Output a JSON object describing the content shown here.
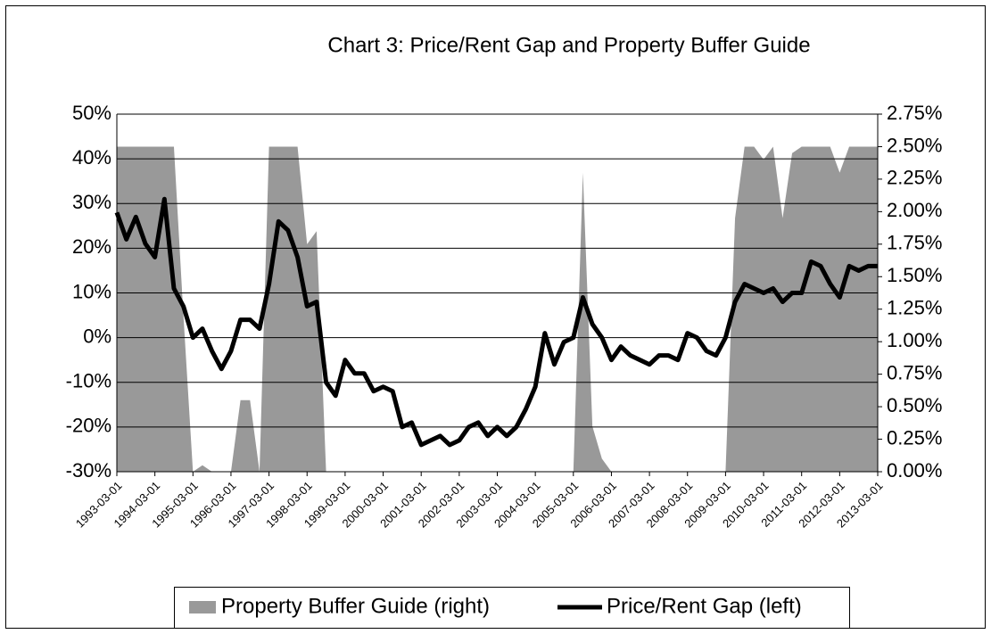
{
  "chart_data": {
    "type": "line",
    "title": "Chart 3: Price/Rent Gap and Property Buffer Guide",
    "categories": [
      "1993-03-01",
      null,
      null,
      null,
      "1994-03-01",
      null,
      null,
      null,
      "1995-03-01",
      null,
      null,
      null,
      "1996-03-01",
      null,
      null,
      null,
      "1997-03-01",
      null,
      null,
      null,
      "1998-03-01",
      null,
      null,
      null,
      "1999-03-01",
      null,
      null,
      null,
      "2000-03-01",
      null,
      null,
      null,
      "2001-03-01",
      null,
      null,
      null,
      "2002-03-01",
      null,
      null,
      null,
      "2003-03-01",
      null,
      null,
      null,
      "2004-03-01",
      null,
      null,
      null,
      "2005-03-01",
      null,
      null,
      null,
      "2006-03-01",
      null,
      null,
      null,
      "2007-03-01",
      null,
      null,
      null,
      "2008-03-01",
      null,
      null,
      null,
      "2009-03-01",
      null,
      null,
      null,
      "2010-03-01",
      null,
      null,
      null,
      "2011-03-01",
      null,
      null,
      null,
      "2012-03-01",
      null,
      null,
      null,
      "2013-03-01"
    ],
    "series": [
      {
        "name": "Property Buffer Guide (right)",
        "type": "area",
        "axis": "y2",
        "color": "#999999",
        "values": [
          2.5,
          2.5,
          2.5,
          2.5,
          2.5,
          2.5,
          2.5,
          1.2,
          0,
          0.05,
          0,
          0,
          0,
          0.55,
          0.55,
          0,
          2.5,
          2.5,
          2.5,
          2.5,
          1.75,
          1.85,
          0,
          0,
          0,
          0,
          0,
          0,
          0,
          0,
          0,
          0,
          0,
          0,
          0,
          0,
          0,
          0,
          0,
          0,
          0,
          0,
          0,
          0,
          0,
          0,
          0,
          0,
          0,
          2.3,
          0.35,
          0.1,
          0,
          0,
          0,
          0,
          0,
          0,
          0,
          0,
          0,
          0,
          0,
          0,
          0,
          1.95,
          2.5,
          2.5,
          2.4,
          2.5,
          1.95,
          2.45,
          2.5,
          2.5,
          2.5,
          2.5,
          2.3,
          2.5,
          2.5,
          2.5,
          2.5
        ]
      },
      {
        "name": "Price/Rent Gap (left)",
        "type": "line",
        "color": "#000000",
        "values": [
          28,
          22,
          27,
          21,
          18,
          31,
          11,
          7,
          0,
          2,
          -3,
          -7,
          -3,
          4,
          4,
          2,
          12,
          26,
          24,
          18,
          7,
          8,
          -10,
          -13,
          -5,
          -8,
          -8,
          -12,
          -11,
          -12,
          -20,
          -19,
          -24,
          -23,
          -22,
          -24,
          -23,
          -20,
          -19,
          -22,
          -20,
          -22,
          -20,
          -16,
          -11,
          1,
          -6,
          -1,
          0,
          9,
          3,
          0,
          -5,
          -2,
          -4,
          -5,
          -6,
          -4,
          -4,
          -5,
          1,
          0,
          -3,
          -4,
          0,
          8,
          12,
          11,
          10,
          11,
          8,
          10,
          10,
          17,
          16,
          12,
          9,
          16,
          15,
          16,
          16
        ]
      }
    ],
    "ylim": [
      -30,
      50
    ],
    "yticks": [
      {
        "value": -30,
        "label": "-30%"
      },
      {
        "value": -20,
        "label": "-20%"
      },
      {
        "value": -10,
        "label": "-10%"
      },
      {
        "value": 0,
        "label": "0%"
      },
      {
        "value": 10,
        "label": "10%"
      },
      {
        "value": 20,
        "label": "20%"
      },
      {
        "value": 30,
        "label": "30%"
      },
      {
        "value": 40,
        "label": "40%"
      },
      {
        "value": 50,
        "label": "50%"
      }
    ],
    "y2lim": [
      0,
      2.75
    ],
    "y2ticks": [
      {
        "value": 0,
        "label": "0.00%"
      },
      {
        "value": 0.25,
        "label": "0.25%"
      },
      {
        "value": 0.5,
        "label": "0.50%"
      },
      {
        "value": 0.75,
        "label": "0.75%"
      },
      {
        "value": 1,
        "label": "1.00%"
      },
      {
        "value": 1.25,
        "label": "1.25%"
      },
      {
        "value": 1.5,
        "label": "1.50%"
      },
      {
        "value": 1.75,
        "label": "1.75%"
      },
      {
        "value": 2,
        "label": "2.00%"
      },
      {
        "value": 2.25,
        "label": "2.25%"
      },
      {
        "value": 2.5,
        "label": "2.50%"
      },
      {
        "value": 2.75,
        "label": "2.75%"
      }
    ],
    "grid": true,
    "legend": "bottom"
  }
}
